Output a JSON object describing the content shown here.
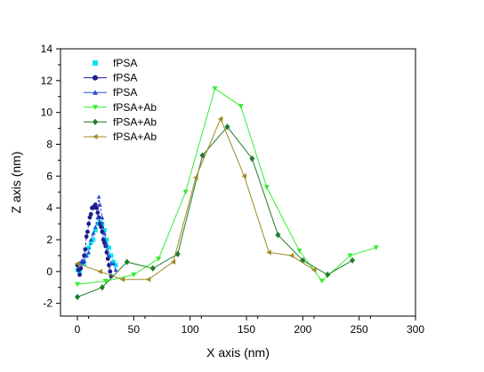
{
  "chart_data": {
    "type": "line",
    "xlabel": "X axis (nm)",
    "ylabel": "Z axis (nm)",
    "xlim": [
      -15,
      300
    ],
    "ylim": [
      -2.8,
      14
    ],
    "x_ticks": [
      0,
      50,
      100,
      150,
      200,
      250,
      300
    ],
    "y_ticks": [
      -2,
      0,
      2,
      4,
      6,
      8,
      10,
      12,
      14
    ],
    "grid": false,
    "legend_position": "top-left",
    "series": [
      {
        "name": "fPSA",
        "color": "#00e5ee",
        "marker": "square",
        "points": [
          [
            0,
            0.1
          ],
          [
            2,
            0.0
          ],
          [
            4,
            0.5
          ],
          [
            6,
            0.5
          ],
          [
            8,
            1.0
          ],
          [
            10,
            1.5
          ],
          [
            12,
            1.8
          ],
          [
            14,
            2.0
          ],
          [
            16,
            2.6
          ],
          [
            18,
            3.0
          ],
          [
            20,
            3.1
          ],
          [
            22,
            3.0
          ],
          [
            24,
            2.6
          ],
          [
            26,
            2.0
          ],
          [
            28,
            1.5
          ],
          [
            30,
            1.0
          ],
          [
            32,
            0.6
          ],
          [
            34,
            0.4
          ]
        ]
      },
      {
        "name": "fPSA",
        "color": "#1c1c8c",
        "marker": "circle",
        "points": [
          [
            0,
            0.4
          ],
          [
            1,
            0.1
          ],
          [
            2,
            -0.2
          ],
          [
            3,
            0.2
          ],
          [
            5,
            0.6
          ],
          [
            6,
            1.0
          ],
          [
            7,
            1.4
          ],
          [
            8,
            2.2
          ],
          [
            9,
            2.5
          ],
          [
            10,
            3.0
          ],
          [
            11,
            3.4
          ],
          [
            12,
            3.6
          ],
          [
            13,
            4.0
          ],
          [
            14,
            4.0
          ],
          [
            15,
            4.1
          ],
          [
            16,
            4.2
          ],
          [
            17,
            4.0
          ],
          [
            18,
            3.7
          ],
          [
            19,
            3.4
          ],
          [
            20,
            3.0
          ],
          [
            21,
            2.8
          ],
          [
            22,
            2.5
          ],
          [
            23,
            2.0
          ],
          [
            24,
            1.8
          ],
          [
            25,
            1.6
          ],
          [
            26,
            1.2
          ],
          [
            27,
            0.8
          ],
          [
            28,
            0.4
          ],
          [
            29,
            0.0
          ],
          [
            30,
            -0.3
          ]
        ]
      },
      {
        "name": "fPSA",
        "color": "#2a48d4",
        "marker": "triangle-up",
        "points": [
          [
            2,
            0.5
          ],
          [
            4,
            0.7
          ],
          [
            6,
            0.7
          ],
          [
            8,
            1.0
          ],
          [
            10,
            1.2
          ],
          [
            12,
            2.0
          ],
          [
            14,
            2.4
          ],
          [
            16,
            2.8
          ],
          [
            18,
            3.4
          ],
          [
            19,
            4.7
          ],
          [
            20,
            4.2
          ],
          [
            22,
            3.4
          ],
          [
            24,
            2.4
          ],
          [
            26,
            1.7
          ],
          [
            28,
            1.0
          ],
          [
            30,
            0.5
          ],
          [
            32,
            0.5
          ],
          [
            34,
            0.1
          ]
        ]
      },
      {
        "name": "fPSA+Ab",
        "color": "#33ee33",
        "marker": "triangle-down",
        "points": [
          [
            0,
            -0.8
          ],
          [
            25,
            -0.6
          ],
          [
            50,
            -0.2
          ],
          [
            72,
            0.8
          ],
          [
            96,
            5.0
          ],
          [
            122,
            11.5
          ],
          [
            145,
            10.4
          ],
          [
            168,
            5.3
          ],
          [
            197,
            1.3
          ],
          [
            217,
            -0.6
          ],
          [
            242,
            1.0
          ],
          [
            265,
            1.5
          ]
        ]
      },
      {
        "name": "fPSA+Ab",
        "color": "#1e7d28",
        "marker": "diamond",
        "points": [
          [
            0,
            -1.6
          ],
          [
            22,
            -1.0
          ],
          [
            44,
            0.6
          ],
          [
            67,
            0.2
          ],
          [
            89,
            1.1
          ],
          [
            111,
            7.3
          ],
          [
            133,
            9.1
          ],
          [
            155,
            7.1
          ],
          [
            178,
            2.3
          ],
          [
            200,
            0.7
          ],
          [
            222,
            -0.2
          ],
          [
            244,
            0.7
          ]
        ]
      },
      {
        "name": "fPSA+Ab",
        "color": "#a08a22",
        "marker": "triangle-left",
        "points": [
          [
            0,
            0.5
          ],
          [
            20,
            0.0
          ],
          [
            40,
            -0.5
          ],
          [
            63,
            -0.5
          ],
          [
            85,
            0.6
          ],
          [
            105,
            5.9
          ],
          [
            127,
            9.6
          ],
          [
            148,
            6.0
          ],
          [
            170,
            1.2
          ],
          [
            190,
            1.0
          ],
          [
            210,
            0.1
          ]
        ]
      }
    ]
  }
}
